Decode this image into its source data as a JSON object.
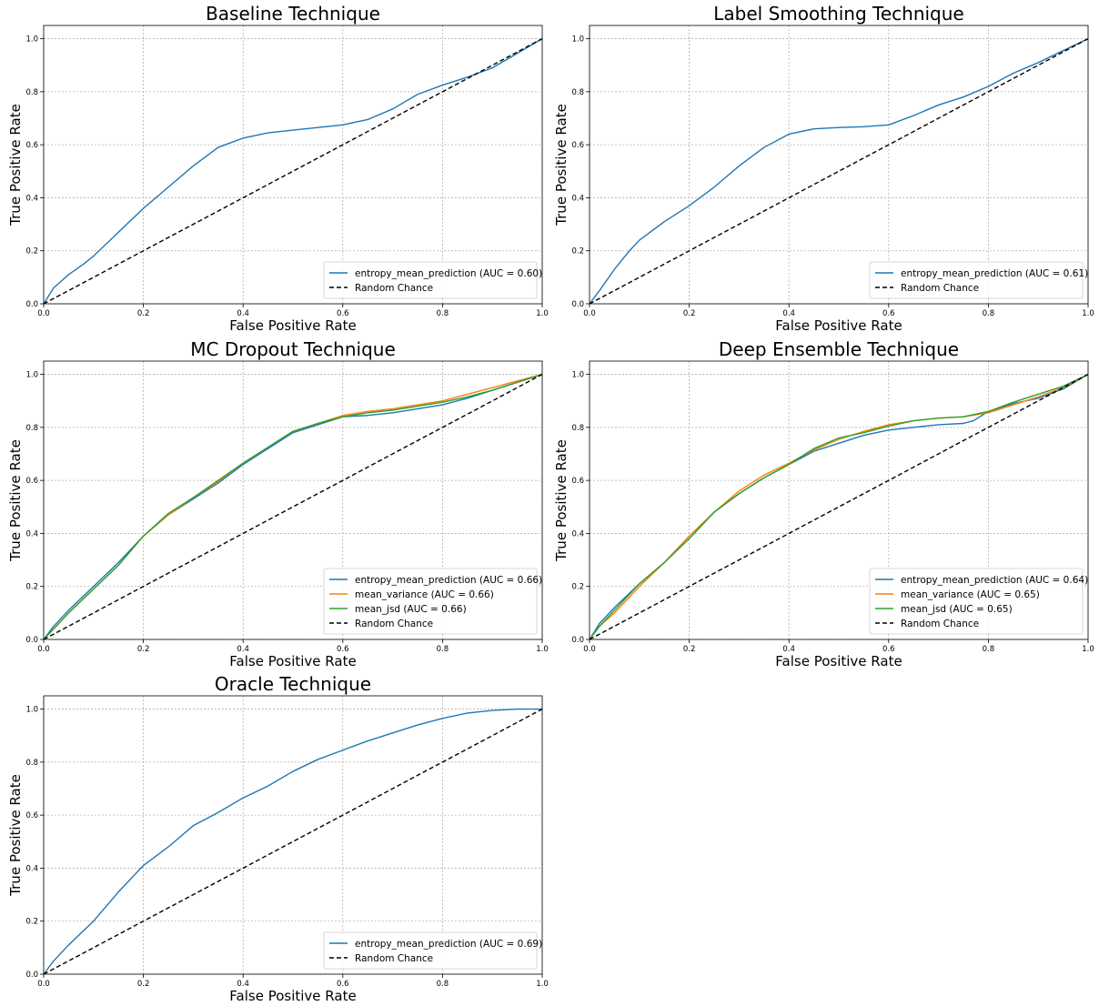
{
  "chart_data": [
    {
      "type": "line",
      "title": "Baseline Technique",
      "xlabel": "False Positive Rate",
      "ylabel": "True Positive Rate",
      "xlim": [
        0,
        1
      ],
      "ylim": [
        0,
        1.05
      ],
      "xticks": [
        "0.0",
        "0.2",
        "0.4",
        "0.6",
        "0.8",
        "1.0"
      ],
      "yticks": [
        "0.0",
        "0.2",
        "0.4",
        "0.6",
        "0.8",
        "1.0"
      ],
      "grid": true,
      "legend_position": "lower-right",
      "series": [
        {
          "name": "entropy_mean_prediction (AUC = 0.60)",
          "color": "#1f77b4",
          "dash": "solid",
          "x": [
            0,
            0.02,
            0.05,
            0.08,
            0.1,
            0.15,
            0.2,
            0.25,
            0.3,
            0.35,
            0.4,
            0.45,
            0.5,
            0.55,
            0.6,
            0.65,
            0.7,
            0.75,
            0.8,
            0.85,
            0.9,
            0.95,
            1.0
          ],
          "y": [
            0,
            0.06,
            0.11,
            0.15,
            0.18,
            0.27,
            0.36,
            0.44,
            0.52,
            0.59,
            0.625,
            0.645,
            0.655,
            0.665,
            0.675,
            0.695,
            0.735,
            0.79,
            0.825,
            0.855,
            0.89,
            0.945,
            1.0
          ]
        },
        {
          "name": "Random Chance",
          "color": "#000000",
          "dash": "dashed",
          "x": [
            0,
            1
          ],
          "y": [
            0,
            1
          ]
        }
      ]
    },
    {
      "type": "line",
      "title": "Label Smoothing Technique",
      "xlabel": "False Positive Rate",
      "ylabel": "True Positive Rate",
      "xlim": [
        0,
        1
      ],
      "ylim": [
        0,
        1.05
      ],
      "xticks": [
        "0.0",
        "0.2",
        "0.4",
        "0.6",
        "0.8",
        "1.0"
      ],
      "yticks": [
        "0.0",
        "0.2",
        "0.4",
        "0.6",
        "0.8",
        "1.0"
      ],
      "grid": true,
      "legend_position": "lower-right",
      "series": [
        {
          "name": "entropy_mean_prediction (AUC = 0.61)",
          "color": "#1f77b4",
          "dash": "solid",
          "x": [
            0,
            0.02,
            0.05,
            0.08,
            0.1,
            0.15,
            0.2,
            0.25,
            0.3,
            0.35,
            0.4,
            0.45,
            0.5,
            0.55,
            0.6,
            0.65,
            0.7,
            0.75,
            0.8,
            0.85,
            0.9,
            0.95,
            1.0
          ],
          "y": [
            0,
            0.05,
            0.13,
            0.2,
            0.24,
            0.31,
            0.37,
            0.44,
            0.52,
            0.59,
            0.64,
            0.66,
            0.665,
            0.668,
            0.675,
            0.71,
            0.75,
            0.78,
            0.82,
            0.87,
            0.91,
            0.955,
            1.0
          ]
        },
        {
          "name": "Random Chance",
          "color": "#000000",
          "dash": "dashed",
          "x": [
            0,
            1
          ],
          "y": [
            0,
            1
          ]
        }
      ]
    },
    {
      "type": "line",
      "title": "MC Dropout Technique",
      "xlabel": "False Positive Rate",
      "ylabel": "True Positive Rate",
      "xlim": [
        0,
        1
      ],
      "ylim": [
        0,
        1.05
      ],
      "xticks": [
        "0.0",
        "0.2",
        "0.4",
        "0.6",
        "0.8",
        "1.0"
      ],
      "yticks": [
        "0.0",
        "0.2",
        "0.4",
        "0.6",
        "0.8",
        "1.0"
      ],
      "grid": true,
      "legend_position": "lower-right",
      "series": [
        {
          "name": "entropy_mean_prediction (AUC = 0.66)",
          "color": "#1f77b4",
          "dash": "solid",
          "x": [
            0,
            0.02,
            0.05,
            0.1,
            0.15,
            0.2,
            0.25,
            0.3,
            0.35,
            0.4,
            0.45,
            0.5,
            0.55,
            0.6,
            0.65,
            0.7,
            0.75,
            0.8,
            0.85,
            0.9,
            0.95,
            1.0
          ],
          "y": [
            0,
            0.05,
            0.11,
            0.2,
            0.29,
            0.39,
            0.47,
            0.53,
            0.59,
            0.66,
            0.72,
            0.78,
            0.81,
            0.84,
            0.845,
            0.855,
            0.87,
            0.885,
            0.91,
            0.94,
            0.97,
            1.0
          ]
        },
        {
          "name": "mean_variance (AUC = 0.66)",
          "color": "#ff7f0e",
          "dash": "solid",
          "x": [
            0,
            0.02,
            0.05,
            0.1,
            0.15,
            0.2,
            0.25,
            0.3,
            0.35,
            0.4,
            0.45,
            0.5,
            0.55,
            0.6,
            0.65,
            0.7,
            0.75,
            0.8,
            0.85,
            0.9,
            0.95,
            1.0
          ],
          "y": [
            0,
            0.04,
            0.1,
            0.19,
            0.28,
            0.39,
            0.47,
            0.535,
            0.595,
            0.665,
            0.725,
            0.785,
            0.815,
            0.845,
            0.86,
            0.87,
            0.885,
            0.9,
            0.925,
            0.95,
            0.975,
            1.0
          ]
        },
        {
          "name": "mean_jsd (AUC = 0.66)",
          "color": "#2ca02c",
          "dash": "solid",
          "x": [
            0,
            0.02,
            0.05,
            0.1,
            0.15,
            0.2,
            0.25,
            0.3,
            0.35,
            0.4,
            0.45,
            0.5,
            0.55,
            0.6,
            0.65,
            0.7,
            0.75,
            0.8,
            0.85,
            0.9,
            0.95,
            1.0
          ],
          "y": [
            0,
            0.04,
            0.1,
            0.19,
            0.28,
            0.39,
            0.475,
            0.535,
            0.6,
            0.665,
            0.725,
            0.785,
            0.815,
            0.84,
            0.855,
            0.865,
            0.88,
            0.895,
            0.915,
            0.94,
            0.97,
            1.0
          ]
        },
        {
          "name": "Random Chance",
          "color": "#000000",
          "dash": "dashed",
          "x": [
            0,
            1
          ],
          "y": [
            0,
            1
          ]
        }
      ]
    },
    {
      "type": "line",
      "title": "Deep Ensemble Technique",
      "xlabel": "False Positive Rate",
      "ylabel": "True Positive Rate",
      "xlim": [
        0,
        1
      ],
      "ylim": [
        0,
        1.05
      ],
      "xticks": [
        "0.0",
        "0.2",
        "0.4",
        "0.6",
        "0.8",
        "1.0"
      ],
      "yticks": [
        "0.0",
        "0.2",
        "0.4",
        "0.6",
        "0.8",
        "1.0"
      ],
      "grid": true,
      "legend_position": "lower-right",
      "series": [
        {
          "name": "entropy_mean_prediction (AUC = 0.64)",
          "color": "#1f77b4",
          "dash": "solid",
          "x": [
            0,
            0.02,
            0.05,
            0.1,
            0.15,
            0.2,
            0.25,
            0.3,
            0.35,
            0.4,
            0.45,
            0.5,
            0.55,
            0.6,
            0.65,
            0.7,
            0.75,
            0.77,
            0.8,
            0.85,
            0.9,
            0.95,
            1.0
          ],
          "y": [
            0,
            0.06,
            0.12,
            0.21,
            0.29,
            0.39,
            0.48,
            0.55,
            0.61,
            0.66,
            0.71,
            0.74,
            0.77,
            0.79,
            0.8,
            0.81,
            0.815,
            0.825,
            0.86,
            0.89,
            0.91,
            0.945,
            1.0
          ]
        },
        {
          "name": "mean_variance (AUC = 0.65)",
          "color": "#ff7f0e",
          "dash": "solid",
          "x": [
            0,
            0.02,
            0.05,
            0.1,
            0.15,
            0.2,
            0.25,
            0.3,
            0.35,
            0.4,
            0.45,
            0.5,
            0.55,
            0.6,
            0.65,
            0.7,
            0.75,
            0.8,
            0.85,
            0.9,
            0.95,
            1.0
          ],
          "y": [
            0,
            0.05,
            0.1,
            0.2,
            0.29,
            0.39,
            0.48,
            0.56,
            0.62,
            0.665,
            0.715,
            0.755,
            0.785,
            0.81,
            0.825,
            0.835,
            0.84,
            0.855,
            0.885,
            0.915,
            0.95,
            1.0
          ]
        },
        {
          "name": "mean_jsd (AUC = 0.65)",
          "color": "#2ca02c",
          "dash": "solid",
          "x": [
            0,
            0.02,
            0.05,
            0.1,
            0.15,
            0.2,
            0.25,
            0.3,
            0.35,
            0.4,
            0.45,
            0.5,
            0.55,
            0.6,
            0.65,
            0.7,
            0.75,
            0.8,
            0.85,
            0.9,
            0.95,
            1.0
          ],
          "y": [
            0,
            0.05,
            0.11,
            0.21,
            0.29,
            0.38,
            0.48,
            0.55,
            0.61,
            0.66,
            0.72,
            0.76,
            0.78,
            0.805,
            0.825,
            0.835,
            0.84,
            0.86,
            0.895,
            0.925,
            0.955,
            1.0
          ]
        },
        {
          "name": "Random Chance",
          "color": "#000000",
          "dash": "dashed",
          "x": [
            0,
            1
          ],
          "y": [
            0,
            1
          ]
        }
      ]
    },
    {
      "type": "line",
      "title": "Oracle Technique",
      "xlabel": "False Positive Rate",
      "ylabel": "True Positive Rate",
      "xlim": [
        0,
        1
      ],
      "ylim": [
        0,
        1.05
      ],
      "xticks": [
        "0.0",
        "0.2",
        "0.4",
        "0.6",
        "0.8",
        "1.0"
      ],
      "yticks": [
        "0.0",
        "0.2",
        "0.4",
        "0.6",
        "0.8",
        "1.0"
      ],
      "grid": true,
      "legend_position": "lower-right",
      "series": [
        {
          "name": "entropy_mean_prediction (AUC = 0.69)",
          "color": "#1f77b4",
          "dash": "solid",
          "x": [
            0,
            0.02,
            0.05,
            0.1,
            0.15,
            0.2,
            0.25,
            0.3,
            0.35,
            0.4,
            0.45,
            0.5,
            0.55,
            0.6,
            0.65,
            0.7,
            0.75,
            0.8,
            0.85,
            0.9,
            0.95,
            1.0
          ],
          "y": [
            0,
            0.05,
            0.11,
            0.2,
            0.31,
            0.41,
            0.48,
            0.56,
            0.61,
            0.665,
            0.71,
            0.765,
            0.81,
            0.845,
            0.88,
            0.91,
            0.94,
            0.965,
            0.985,
            0.995,
            1.0,
            1.0
          ]
        },
        {
          "name": "Random Chance",
          "color": "#000000",
          "dash": "dashed",
          "x": [
            0,
            1
          ],
          "y": [
            0,
            1
          ]
        }
      ]
    }
  ]
}
